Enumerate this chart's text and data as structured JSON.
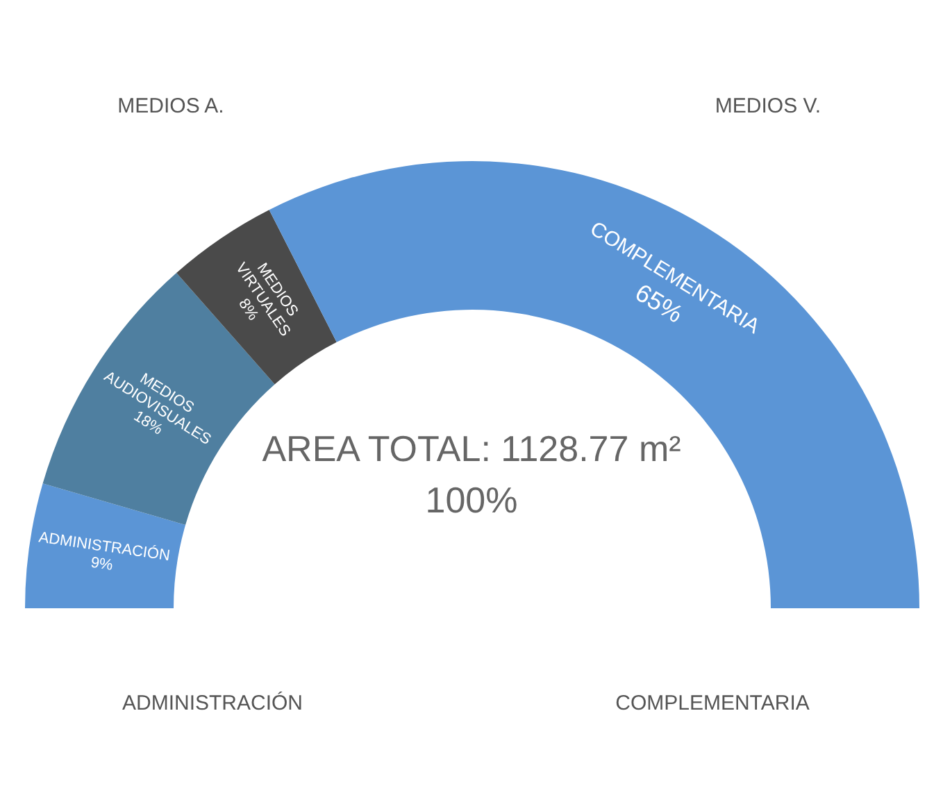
{
  "chart_data": {
    "type": "donut",
    "title": "AREA TOTAL: 1128.77 m²",
    "subtitle": "100%",
    "categories": [
      "ADMINISTRACIÓN",
      "MEDIOS AUDIOVISUALES",
      "MEDIOS VIRTUALES",
      "COMPLEMENTARIA"
    ],
    "values": [
      9,
      18,
      8,
      65
    ],
    "colors": [
      "#5b95d6",
      "#4f7fa0",
      "#4a4a4a",
      "#5b95d6"
    ],
    "value_labels": [
      "9%",
      "18%",
      "8%",
      "65%"
    ],
    "annotations": [
      "ADMINISTRACIÓN",
      "MEDIOS A.",
      "MEDIOS V.",
      "COMPLEMENTARIA"
    ]
  }
}
